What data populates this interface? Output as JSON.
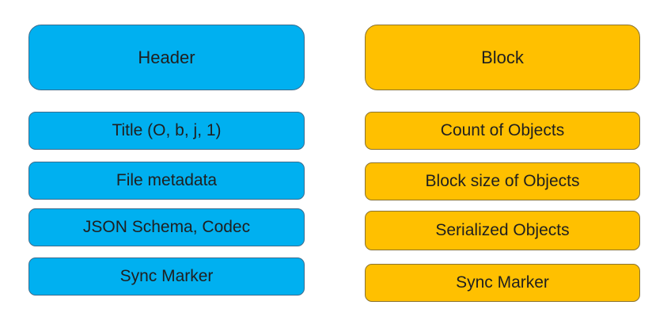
{
  "header_column": {
    "title": "Header",
    "items": [
      "Title (O, b, j, 1)",
      "File metadata",
      "JSON Schema, Codec",
      "Sync Marker"
    ],
    "color": "#00b0f0"
  },
  "block_column": {
    "title": "Block",
    "items": [
      "Count of Objects",
      "Block size of Objects",
      "Serialized Objects",
      "Sync Marker"
    ],
    "color": "#ffc000"
  }
}
